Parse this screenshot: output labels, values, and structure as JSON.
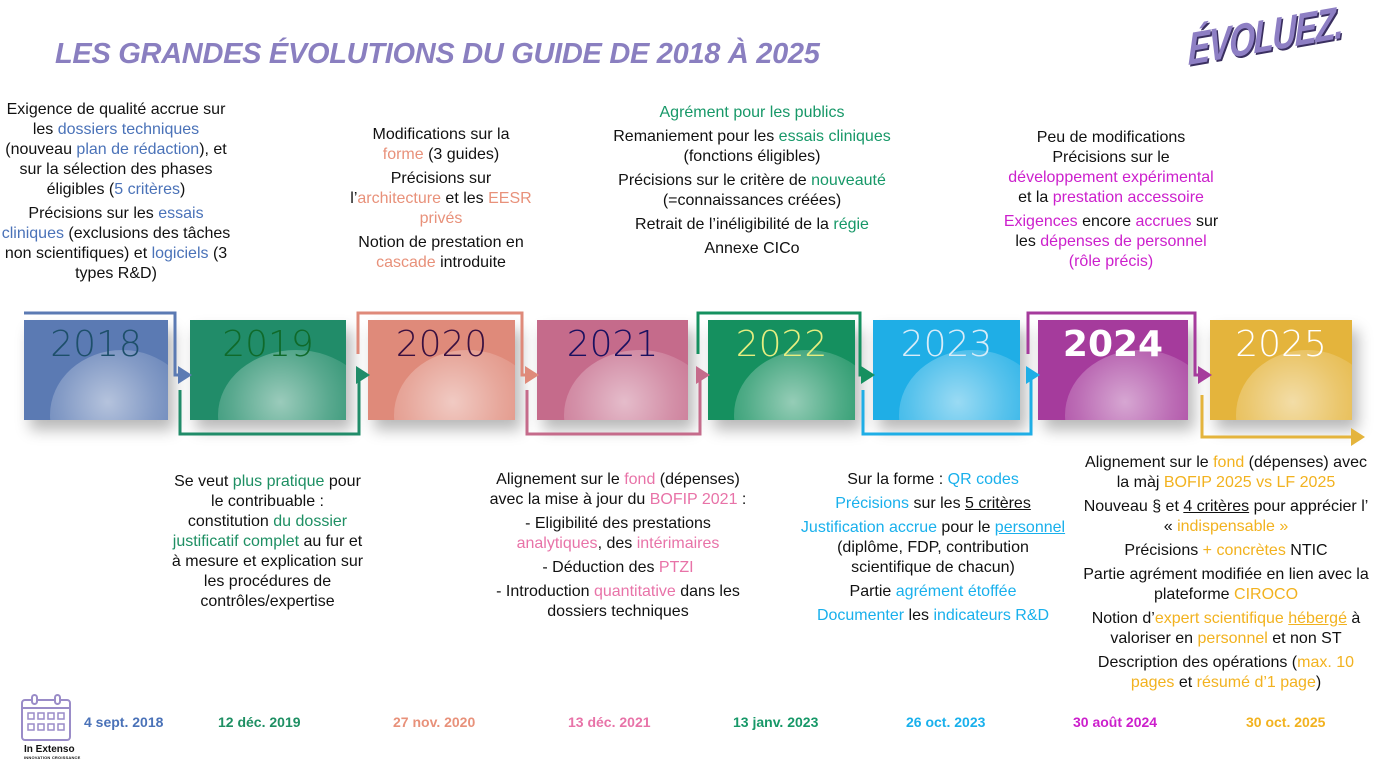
{
  "title": "LES GRANDES ÉVOLUTIONS DU GUIDE DE 2018 À 2025",
  "logo": "ÉVOLUEZ.",
  "brand": {
    "name": "In Extenso",
    "tagline": "INNOVATION CROISSANCE"
  },
  "years": [
    {
      "label": "2018",
      "color": "#5b7ab3",
      "accent": "#4a72b8",
      "date": "4 sept. 2018"
    },
    {
      "label": "2019",
      "color": "#218c69",
      "accent": "#1e8f63",
      "date": "12 déc. 2019"
    },
    {
      "label": "2020",
      "color": "#df8a7a",
      "accent": "#e8917a",
      "date": "27 nov. 2020"
    },
    {
      "label": "2021",
      "color": "#c56b8b",
      "accent": "#e873a8",
      "date": "13 déc. 2021"
    },
    {
      "label": "2022",
      "color": "#15905f",
      "accent": "#179868",
      "date": "13 janv. 2023"
    },
    {
      "label": "2023",
      "color": "#1faee6",
      "accent": "#19b0ec",
      "date": "26 oct. 2023"
    },
    {
      "label": "2024",
      "color": "#a53b9c",
      "accent": "#cc1fcc",
      "date": "30 août 2024"
    },
    {
      "label": "2025",
      "color": "#e4b43c",
      "accent": "#f2b21f",
      "date": "30 oct. 2025"
    }
  ],
  "blocks": [
    {
      "year": 0,
      "paras": [
        [
          {
            "t": "Exigence de qualité accrue sur les "
          },
          {
            "t": "dossiers techniques",
            "a": 1
          },
          {
            "t": " (nouveau "
          },
          {
            "t": "plan de rédaction",
            "a": 1
          },
          {
            "t": "), et sur la sélection des phases éligibles ("
          },
          {
            "t": "5 critères",
            "a": 1
          },
          {
            "t": ")"
          }
        ],
        [
          {
            "t": "Précisions sur les "
          },
          {
            "t": "essais cliniques",
            "a": 1
          },
          {
            "t": " (exclusions des tâches non scientifiques) et "
          },
          {
            "t": "logiciels",
            "a": 1
          },
          {
            "t": " (3 types R&D)"
          }
        ]
      ]
    },
    {
      "year": 1,
      "paras": [
        [
          {
            "t": "Se veut "
          },
          {
            "t": "plus pratique",
            "a": 1
          },
          {
            "t": " pour le contribuable : constitution "
          },
          {
            "t": "du dossier justificatif complet",
            "a": 1
          },
          {
            "t": " au fur et à mesure et explication sur les procédures de contrôles/expertise"
          }
        ]
      ]
    },
    {
      "year": 2,
      "paras": [
        [
          {
            "t": "Modifications sur la "
          },
          {
            "t": "forme",
            "a": 1
          },
          {
            "t": " (3 guides)"
          }
        ],
        [
          {
            "t": "Précisions sur l’"
          },
          {
            "t": "architecture",
            "a": 1
          },
          {
            "t": " et les "
          },
          {
            "t": "EESR privés",
            "a": 1
          }
        ],
        [
          {
            "t": "Notion de prestation en "
          },
          {
            "t": "cascade",
            "a": 1
          },
          {
            "t": " introduite"
          }
        ]
      ]
    },
    {
      "year": 3,
      "paras": [
        [
          {
            "t": "Alignement sur le "
          },
          {
            "t": "fond",
            "a": 1
          },
          {
            "t": " (dépenses) avec la mise à jour du "
          },
          {
            "t": "BOFIP 2021",
            "a": 1
          },
          {
            "t": " :"
          }
        ],
        [
          {
            "t": "- Eligibilité des prestations "
          },
          {
            "t": "analytiques",
            "a": 1
          },
          {
            "t": ", des "
          },
          {
            "t": "intérimaires",
            "a": 1
          }
        ],
        [
          {
            "t": "- Déduction des "
          },
          {
            "t": "PTZI",
            "a": 1
          }
        ],
        [
          {
            "t": "- Introduction "
          },
          {
            "t": "quantitative",
            "a": 1
          },
          {
            "t": " dans les dossiers techniques"
          }
        ]
      ]
    },
    {
      "year": 4,
      "paras": [
        [
          {
            "t": "Agrément pour les publics",
            "a": 1
          }
        ],
        [
          {
            "t": "Remaniement pour les "
          },
          {
            "t": "essais cliniques",
            "a": 1
          },
          {
            "t": " (fonctions éligibles)"
          }
        ],
        [
          {
            "t": "Précisions sur le critère de "
          },
          {
            "t": "nouveauté",
            "a": 1
          },
          {
            "t": " (=connaissances créées)"
          }
        ],
        [
          {
            "t": "Retrait de l’inéligibilité de la "
          },
          {
            "t": "régie",
            "a": 1
          }
        ],
        [
          {
            "t": "Annexe CICo"
          }
        ]
      ]
    },
    {
      "year": 5,
      "paras": [
        [
          {
            "t": "Sur la forme : "
          },
          {
            "t": "QR codes",
            "a": 1
          }
        ],
        [
          {
            "t": "Précisions",
            "a": 1
          },
          {
            "t": " sur les "
          },
          {
            "t": "5 critères",
            "u": 1
          }
        ],
        [
          {
            "t": "Justification accrue",
            "a": 1
          },
          {
            "t": " pour le "
          },
          {
            "t": "personnel",
            "a": 1,
            "u": 1
          },
          {
            "t": " (diplôme, FDP, contribution scientifique de chacun)"
          }
        ],
        [
          {
            "t": "Partie "
          },
          {
            "t": "agrément étoffée",
            "a": 1
          }
        ],
        [
          {
            "t": "Documenter",
            "a": 1
          },
          {
            "t": " les "
          },
          {
            "t": "indicateurs R&D",
            "a": 1
          }
        ]
      ]
    },
    {
      "year": 6,
      "paras": [
        [
          {
            "t": "Peu de modifications Précisions sur le "
          },
          {
            "t": "développement expérimental",
            "a": 1
          },
          {
            "t": " et la "
          },
          {
            "t": "prestation accessoire",
            "a": 1
          }
        ],
        [
          {
            "t": "Exigences",
            "a": 1
          },
          {
            "t": " encore "
          },
          {
            "t": "accrues",
            "a": 1
          },
          {
            "t": " sur les "
          },
          {
            "t": "dépenses de personnel (rôle précis)",
            "a": 1
          }
        ]
      ]
    },
    {
      "year": 7,
      "paras": [
        [
          {
            "t": "Alignement sur le "
          },
          {
            "t": "fond",
            "a": 1
          },
          {
            "t": " (dépenses) avec la màj "
          },
          {
            "t": "BOFIP 2025 vs LF 2025",
            "a": 1
          }
        ],
        [
          {
            "t": "Nouveau § et "
          },
          {
            "t": "4 critères",
            "u": 1
          },
          {
            "t": " pour apprécier l’ « "
          },
          {
            "t": "indispensable »",
            "a": 1
          }
        ],
        [
          {
            "t": "Précisions "
          },
          {
            "t": "+ concrètes",
            "a": 1
          },
          {
            "t": " NTIC"
          }
        ],
        [
          {
            "t": "Partie agrément modifiée en lien avec la plateforme "
          },
          {
            "t": "CIROCO",
            "a": 1
          }
        ],
        [
          {
            "t": "Notion d’"
          },
          {
            "t": "expert scientifique ",
            "a": 1
          },
          {
            "t": "hébergé",
            "a": 1,
            "u": 1
          },
          {
            "t": " à valoriser en "
          },
          {
            "t": "personnel",
            "a": 1
          },
          {
            "t": " et non ST"
          }
        ],
        [
          {
            "t": "Description des opérations ("
          },
          {
            "t": "max. 10 pages",
            "a": 1
          },
          {
            "t": " et "
          },
          {
            "t": "résumé d’1 page",
            "a": 1
          },
          {
            "t": ")"
          }
        ]
      ]
    }
  ]
}
